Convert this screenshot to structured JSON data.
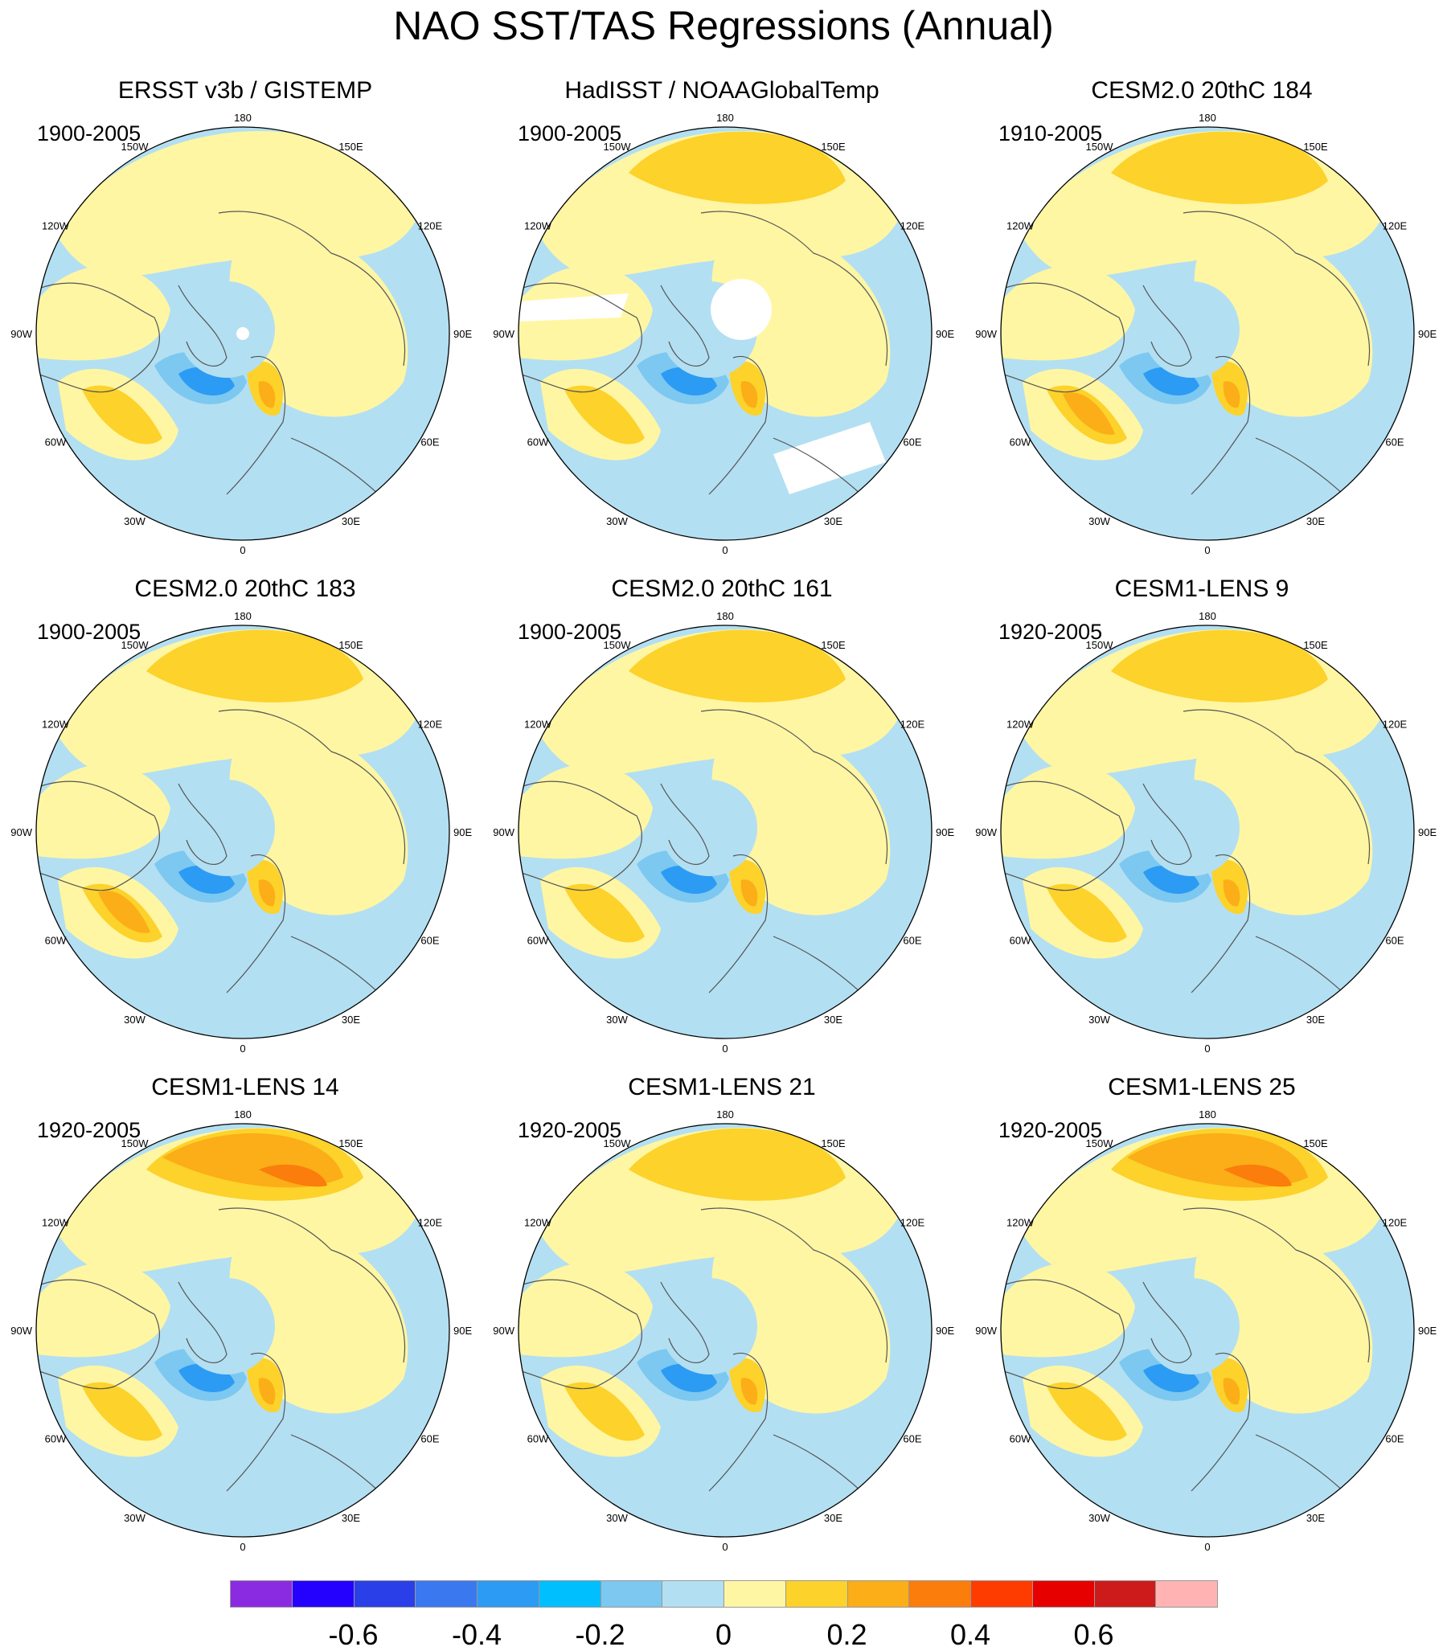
{
  "title": "NAO SST/TAS Regressions (Annual)",
  "longitude_labels": [
    "180",
    "150E",
    "120E",
    "90E",
    "60E",
    "30E",
    "0",
    "30W",
    "60W",
    "90W",
    "120W",
    "150W"
  ],
  "panels": [
    {
      "title": "ERSST v3b / GISTEMP",
      "period": "1900-2005",
      "variant": "obs1"
    },
    {
      "title": "HadISST / NOAAGlobalTemp",
      "period": "1900-2005",
      "variant": "obs2"
    },
    {
      "title": "CESM2.0 20thC 184",
      "period": "1910-2005",
      "variant": "model"
    },
    {
      "title": "CESM2.0 20thC 183",
      "period": "1900-2005",
      "variant": "model"
    },
    {
      "title": "CESM2.0 20thC 161",
      "period": "1900-2005",
      "variant": "model"
    },
    {
      "title": "CESM1-LENS 9",
      "period": "1920-2005",
      "variant": "model"
    },
    {
      "title": "CESM1-LENS 14",
      "period": "1920-2005",
      "variant": "strong"
    },
    {
      "title": "CESM1-LENS 21",
      "period": "1920-2005",
      "variant": "model"
    },
    {
      "title": "CESM1-LENS 25",
      "period": "1920-2005",
      "variant": "strong"
    }
  ],
  "colorbar": {
    "colors": [
      "#8a2be2",
      "#2400ff",
      "#2a3fe8",
      "#3a78f0",
      "#2c9bf3",
      "#00bfff",
      "#7cc8f0",
      "#b3dff2",
      "#fff6a3",
      "#fcd22b",
      "#fbae17",
      "#fb7d0b",
      "#ff3c00",
      "#e60000",
      "#cd1b1b",
      "#ffb3b3"
    ],
    "tick_labels": [
      "-0.6",
      "-0.4",
      "-0.2",
      "0",
      "0.2",
      "0.4",
      "0.6"
    ]
  },
  "palette": {
    "neg_light": "#b3dff2",
    "neg_mid": "#7cc8f0",
    "neg_strong": "#2c9bf3",
    "neg_deep": "#3a78f0",
    "pos_light": "#fff6a3",
    "pos_mid": "#fcd22b",
    "pos_strong": "#fbae17",
    "pos_deep": "#fb7d0b",
    "pos_max": "#e60000",
    "missing": "#ffffff"
  }
}
